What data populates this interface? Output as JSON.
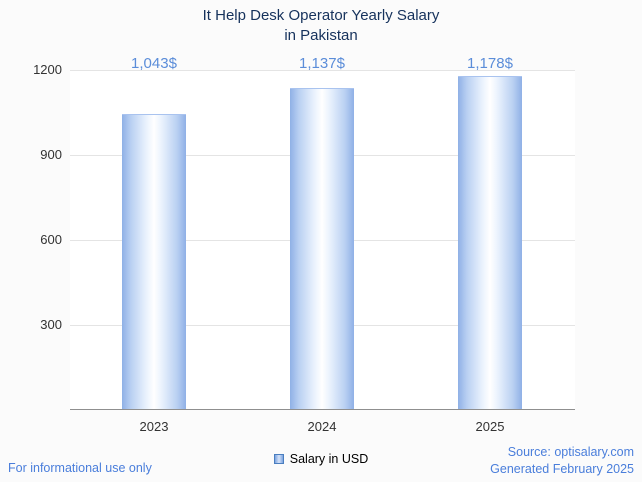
{
  "chart_data": {
    "type": "bar",
    "title": "It Help Desk Operator Yearly Salary in Pakistan",
    "title_lines": [
      "It Help Desk Operator Yearly Salary",
      "in Pakistan"
    ],
    "categories": [
      "2023",
      "2024",
      "2025"
    ],
    "values": [
      1043,
      1137,
      1178
    ],
    "value_labels": [
      "1,043$",
      "1,137$",
      "1,178$"
    ],
    "xlabel": "",
    "ylabel": "",
    "ylim": [
      0,
      1200
    ],
    "yticks": [
      300,
      600,
      900,
      1200
    ],
    "grid": true,
    "legend_position": "bottom",
    "legend": "Salary in USD"
  },
  "footer": {
    "left": "For informational use only",
    "source": "Source: optisalary.com",
    "generated": "Generated February 2025"
  },
  "colors": {
    "title": "#16325c",
    "value_label": "#5b8dd9",
    "bar_edge": "#8fb0e6",
    "bar_center": "#ffffff",
    "footer_text": "#4a7edb",
    "gridline": "#e4e4e4",
    "axis_line": "#8f8f8f"
  }
}
